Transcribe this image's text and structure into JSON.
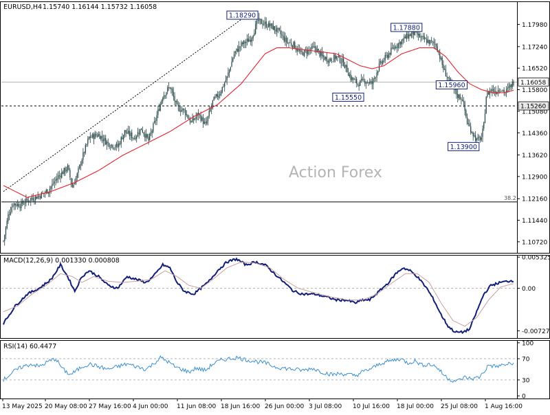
{
  "header": {
    "symbol": "EURUSD,H4",
    "ohlc": "1.15740 1.16144 1.15732 1.16058"
  },
  "watermark": "Action Forex",
  "colors": {
    "candle": "#1f3f3f",
    "ma": "#e8202a",
    "macd": "#101e78",
    "signal": "#c8a0a0",
    "rsi": "#3a8fd0",
    "trend": "#000000",
    "label_border": "#101e78",
    "label_text": "#101e78",
    "grid": "#9a9a9a"
  },
  "chart_data": [
    {
      "type": "candlestick",
      "title": "EURUSD,H4",
      "x_tick_labels": [
        "13 May 2025",
        "20 May 08:00",
        "27 May 16:00",
        "4 Jun 00:00",
        "11 Jun 08:00",
        "18 Jun 16:00",
        "26 Jun 00:00",
        "3 Jul 08:00",
        "10 Jul 16:00",
        "18 Jul 00:00",
        "25 Jul 08:00",
        "1 Aug 16:00"
      ],
      "y_tick_labels": [
        "1.17980",
        "1.17240",
        "1.16520",
        "1.15800",
        "1.15080",
        "1.14360",
        "1.13620",
        "1.12900",
        "1.12160",
        "1.11440",
        "1.10720"
      ],
      "ylim": [
        1.1035,
        1.1875
      ],
      "price_anchors": [
        [
          0,
          1.1075
        ],
        [
          4,
          1.116
        ],
        [
          8,
          1.12
        ],
        [
          14,
          1.1195
        ],
        [
          22,
          1.1215
        ],
        [
          30,
          1.1225
        ],
        [
          38,
          1.1245
        ],
        [
          46,
          1.129
        ],
        [
          54,
          1.132
        ],
        [
          58,
          1.1255
        ],
        [
          62,
          1.1295
        ],
        [
          66,
          1.135
        ],
        [
          72,
          1.142
        ],
        [
          80,
          1.143
        ],
        [
          88,
          1.14
        ],
        [
          96,
          1.139
        ],
        [
          102,
          1.144
        ],
        [
          110,
          1.142
        ],
        [
          116,
          1.145
        ],
        [
          122,
          1.141
        ],
        [
          128,
          1.148
        ],
        [
          134,
          1.156
        ],
        [
          140,
          1.159
        ],
        [
          146,
          1.152
        ],
        [
          152,
          1.151
        ],
        [
          158,
          1.147
        ],
        [
          164,
          1.15
        ],
        [
          170,
          1.146
        ],
        [
          176,
          1.154
        ],
        [
          182,
          1.157
        ],
        [
          188,
          1.162
        ],
        [
          194,
          1.17
        ],
        [
          200,
          1.173
        ],
        [
          208,
          1.175
        ],
        [
          214,
          1.181
        ],
        [
          220,
          1.18
        ],
        [
          226,
          1.179
        ],
        [
          232,
          1.177
        ],
        [
          238,
          1.174
        ],
        [
          244,
          1.173
        ],
        [
          250,
          1.17
        ],
        [
          256,
          1.171
        ],
        [
          262,
          1.172
        ],
        [
          268,
          1.169
        ],
        [
          274,
          1.168
        ],
        [
          280,
          1.169
        ],
        [
          286,
          1.167
        ],
        [
          292,
          1.162
        ],
        [
          298,
          1.16
        ],
        [
          304,
          1.161
        ],
        [
          310,
          1.16
        ],
        [
          316,
          1.166
        ],
        [
          322,
          1.169
        ],
        [
          328,
          1.172
        ],
        [
          334,
          1.174
        ],
        [
          340,
          1.176
        ],
        [
          346,
          1.177
        ],
        [
          352,
          1.175
        ],
        [
          358,
          1.174
        ],
        [
          364,
          1.173
        ],
        [
          370,
          1.165
        ],
        [
          376,
          1.16
        ],
        [
          382,
          1.156
        ],
        [
          386,
          1.155
        ],
        [
          390,
          1.147
        ],
        [
          394,
          1.144
        ],
        [
          398,
          1.141
        ],
        [
          402,
          1.142
        ],
        [
          404,
          1.146
        ],
        [
          406,
          1.156
        ],
        [
          410,
          1.158
        ],
        [
          414,
          1.1575
        ],
        [
          418,
          1.1585
        ],
        [
          422,
          1.157
        ],
        [
          426,
          1.159
        ],
        [
          429,
          1.1606
        ]
      ],
      "ma_anchors": [
        [
          0,
          1.126
        ],
        [
          20,
          1.122
        ],
        [
          40,
          1.124
        ],
        [
          60,
          1.127
        ],
        [
          80,
          1.131
        ],
        [
          100,
          1.136
        ],
        [
          120,
          1.14
        ],
        [
          140,
          1.144
        ],
        [
          160,
          1.149
        ],
        [
          180,
          1.153
        ],
        [
          200,
          1.16
        ],
        [
          210,
          1.165
        ],
        [
          220,
          1.17
        ],
        [
          230,
          1.172
        ],
        [
          240,
          1.172
        ],
        [
          260,
          1.171
        ],
        [
          280,
          1.17
        ],
        [
          300,
          1.166
        ],
        [
          310,
          1.165
        ],
        [
          320,
          1.166
        ],
        [
          335,
          1.17
        ],
        [
          350,
          1.172
        ],
        [
          362,
          1.172
        ],
        [
          372,
          1.169
        ],
        [
          382,
          1.164
        ],
        [
          392,
          1.16
        ],
        [
          402,
          1.158
        ],
        [
          412,
          1.157
        ],
        [
          420,
          1.157
        ],
        [
          429,
          1.1578
        ]
      ],
      "levels": [
        {
          "name": "support",
          "value": 1.1526,
          "style": "dashed"
        },
        {
          "name": "current",
          "value": 1.16058,
          "style": "solid-thin"
        },
        {
          "name": "fib",
          "value": 1.1205,
          "label": "38.2",
          "style": "solid"
        }
      ],
      "trendline": {
        "from": [
          0,
          1.124
        ],
        "to": [
          205,
          1.1829
        ],
        "style": "dotted"
      },
      "price_labels": [
        {
          "text": "1.18290",
          "x": 214,
          "value": 1.1829
        },
        {
          "text": "1.17880",
          "x": 352,
          "value": 1.1788
        },
        {
          "text": "1.15550",
          "x": 303,
          "value": 1.1555
        },
        {
          "text": "1.15960",
          "x": 390,
          "value": 1.1596
        },
        {
          "text": "1.13900",
          "x": 400,
          "value": 1.139
        }
      ],
      "axis_tags": [
        {
          "text": "1.16058",
          "value": 1.16058,
          "style": "outline"
        },
        {
          "text": "1.15260",
          "value": 1.1526,
          "style": "fill"
        }
      ]
    },
    {
      "type": "line",
      "title": "MACD(12,26,9) 0.001330 0.000808",
      "y_tick_labels": [
        "0.005325",
        "0.00",
        "-0.007273"
      ],
      "ylim": [
        -0.0085,
        0.0057
      ],
      "zero_line": 0.0,
      "series": [
        {
          "role": "macd",
          "anchors": [
            [
              0,
              -0.006
            ],
            [
              10,
              -0.003
            ],
            [
              20,
              -0.001
            ],
            [
              30,
              0.0
            ],
            [
              40,
              0.0015
            ],
            [
              48,
              0.004
            ],
            [
              54,
              0.002
            ],
            [
              60,
              -0.0005
            ],
            [
              66,
              0.002
            ],
            [
              72,
              0.003
            ],
            [
              80,
              0.002
            ],
            [
              88,
              0.0005
            ],
            [
              96,
              0.0
            ],
            [
              104,
              0.002
            ],
            [
              112,
              0.0015
            ],
            [
              120,
              0.001
            ],
            [
              126,
              0.002
            ],
            [
              134,
              0.004
            ],
            [
              140,
              0.0035
            ],
            [
              146,
              0.001
            ],
            [
              152,
              -0.0005
            ],
            [
              160,
              -0.001
            ],
            [
              166,
              0.0
            ],
            [
              172,
              0.001
            ],
            [
              180,
              0.003
            ],
            [
              188,
              0.0045
            ],
            [
              196,
              0.005
            ],
            [
              204,
              0.004
            ],
            [
              212,
              0.0045
            ],
            [
              220,
              0.004
            ],
            [
              228,
              0.0025
            ],
            [
              236,
              0.001
            ],
            [
              244,
              -0.0005
            ],
            [
              252,
              -0.001
            ],
            [
              262,
              -0.001
            ],
            [
              272,
              -0.0015
            ],
            [
              280,
              -0.002
            ],
            [
              288,
              -0.002
            ],
            [
              296,
              -0.0025
            ],
            [
              302,
              -0.002
            ],
            [
              308,
              -0.002
            ],
            [
              316,
              -0.0005
            ],
            [
              324,
              0.001
            ],
            [
              330,
              0.0025
            ],
            [
              336,
              0.0035
            ],
            [
              342,
              0.003
            ],
            [
              348,
              0.002
            ],
            [
              356,
              0.0
            ],
            [
              362,
              -0.002
            ],
            [
              368,
              -0.0045
            ],
            [
              374,
              -0.0065
            ],
            [
              380,
              -0.0075
            ],
            [
              386,
              -0.0075
            ],
            [
              392,
              -0.007
            ],
            [
              398,
              -0.004
            ],
            [
              404,
              -0.001
            ],
            [
              410,
              0.0005
            ],
            [
              418,
              0.001
            ],
            [
              424,
              0.0012
            ],
            [
              429,
              0.00133
            ]
          ]
        },
        {
          "role": "signal",
          "anchors": [
            [
              0,
              -0.004
            ],
            [
              12,
              -0.003
            ],
            [
              24,
              -0.001
            ],
            [
              36,
              0.0005
            ],
            [
              48,
              0.0025
            ],
            [
              58,
              0.002
            ],
            [
              66,
              0.001
            ],
            [
              76,
              0.002
            ],
            [
              88,
              0.0012
            ],
            [
              100,
              0.001
            ],
            [
              112,
              0.0012
            ],
            [
              124,
              0.0015
            ],
            [
              136,
              0.003
            ],
            [
              146,
              0.002
            ],
            [
              156,
              0.0005
            ],
            [
              166,
              0.0
            ],
            [
              176,
              0.0015
            ],
            [
              188,
              0.0035
            ],
            [
              200,
              0.0045
            ],
            [
              212,
              0.0043
            ],
            [
              224,
              0.0035
            ],
            [
              236,
              0.0015
            ],
            [
              248,
              0.0
            ],
            [
              262,
              -0.0008
            ],
            [
              276,
              -0.0015
            ],
            [
              290,
              -0.002
            ],
            [
              302,
              -0.002
            ],
            [
              314,
              -0.001
            ],
            [
              326,
              0.0008
            ],
            [
              338,
              0.0025
            ],
            [
              348,
              0.0025
            ],
            [
              358,
              0.001
            ],
            [
              368,
              -0.0025
            ],
            [
              378,
              -0.0055
            ],
            [
              388,
              -0.0065
            ],
            [
              398,
              -0.005
            ],
            [
              408,
              -0.002
            ],
            [
              418,
              0.0002
            ],
            [
              429,
              0.000808
            ]
          ]
        }
      ]
    },
    {
      "type": "line",
      "title": "RSI(14) 60.4477",
      "y_tick_labels": [
        "100",
        "70",
        "30",
        "0"
      ],
      "ylim": [
        0,
        100
      ],
      "levels": [
        70,
        30
      ],
      "series": [
        {
          "role": "rsi",
          "anchors": [
            [
              0,
              30
            ],
            [
              8,
              45
            ],
            [
              16,
              55
            ],
            [
              24,
              60
            ],
            [
              30,
              55
            ],
            [
              38,
              65
            ],
            [
              44,
              70
            ],
            [
              50,
              50
            ],
            [
              56,
              40
            ],
            [
              60,
              45
            ],
            [
              66,
              55
            ],
            [
              72,
              60
            ],
            [
              80,
              55
            ],
            [
              88,
              50
            ],
            [
              96,
              55
            ],
            [
              104,
              60
            ],
            [
              112,
              55
            ],
            [
              120,
              50
            ],
            [
              126,
              60
            ],
            [
              132,
              72
            ],
            [
              138,
              65
            ],
            [
              144,
              55
            ],
            [
              150,
              50
            ],
            [
              156,
              45
            ],
            [
              162,
              52
            ],
            [
              170,
              48
            ],
            [
              176,
              60
            ],
            [
              184,
              68
            ],
            [
              190,
              70
            ],
            [
              196,
              72
            ],
            [
              204,
              68
            ],
            [
              212,
              65
            ],
            [
              220,
              62
            ],
            [
              228,
              55
            ],
            [
              236,
              52
            ],
            [
              244,
              50
            ],
            [
              252,
              48
            ],
            [
              260,
              52
            ],
            [
              268,
              45
            ],
            [
              276,
              40
            ],
            [
              284,
              42
            ],
            [
              290,
              40
            ],
            [
              296,
              38
            ],
            [
              302,
              45
            ],
            [
              310,
              52
            ],
            [
              318,
              62
            ],
            [
              326,
              66
            ],
            [
              334,
              70
            ],
            [
              340,
              62
            ],
            [
              346,
              66
            ],
            [
              352,
              58
            ],
            [
              358,
              60
            ],
            [
              364,
              55
            ],
            [
              370,
              40
            ],
            [
              376,
              30
            ],
            [
              382,
              28
            ],
            [
              388,
              35
            ],
            [
              394,
              32
            ],
            [
              400,
              35
            ],
            [
              404,
              45
            ],
            [
              408,
              58
            ],
            [
              414,
              55
            ],
            [
              420,
              58
            ],
            [
              426,
              60
            ],
            [
              429,
              60.4477
            ]
          ]
        }
      ]
    }
  ]
}
